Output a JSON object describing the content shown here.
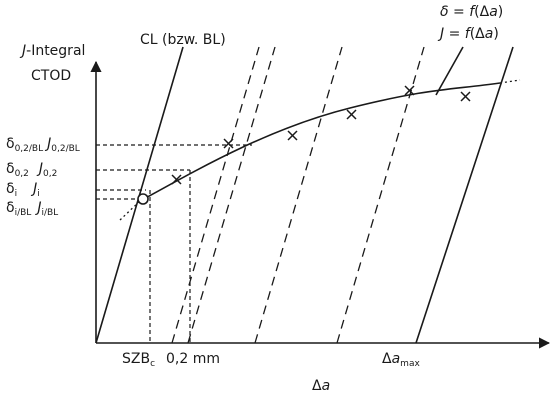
{
  "axes": {
    "y_label_line1_italic": "J",
    "y_label_line1_rest": "-Integral",
    "y_label_line2": "CTOD",
    "x_label_prefix": "Δ",
    "x_label_var": "a"
  },
  "lines": {
    "cl_label": "CL (bzw. BL)",
    "curve_label_delta": {
      "sym": "δ",
      "eq": " = ",
      "f": "f",
      "arg_open": "(Δ",
      "arg_var": "a",
      "arg_close": ")"
    },
    "curve_label_j": {
      "sym": "J",
      "eq": " = ",
      "f": "f",
      "arg_open": "(Δ",
      "arg_var": "a",
      "arg_close": ")"
    }
  },
  "y_markers": [
    {
      "delta": "δ",
      "delta_sub": "0,2/BL",
      "j": "J",
      "j_sub": "0,2/BL"
    },
    {
      "delta": "δ",
      "delta_sub": "0,2",
      "j": "J",
      "j_sub": "0,2"
    },
    {
      "delta": "δ",
      "delta_sub": "i",
      "j": "J",
      "j_sub": "i"
    },
    {
      "delta": "δ",
      "delta_sub": "i/BL",
      "j": "J",
      "j_sub": "i/BL"
    }
  ],
  "x_markers": {
    "szb": "SZB",
    "szb_sub": "c",
    "offset": "0,2 mm",
    "amax_prefix": "Δ",
    "amax_var": "a",
    "amax_sub": "max"
  },
  "icons": {
    "data_point": "cross-marker-icon",
    "initiation_point": "open-circle-icon"
  }
}
